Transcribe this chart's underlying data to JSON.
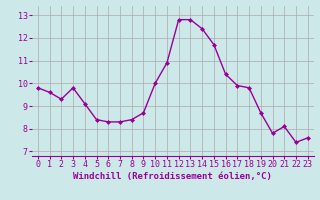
{
  "x": [
    0,
    1,
    2,
    3,
    4,
    5,
    6,
    7,
    8,
    9,
    10,
    11,
    12,
    13,
    14,
    15,
    16,
    17,
    18,
    19,
    20,
    21,
    22,
    23
  ],
  "y": [
    9.8,
    9.6,
    9.3,
    9.8,
    9.1,
    8.4,
    8.3,
    8.3,
    8.4,
    8.7,
    10.0,
    10.9,
    12.8,
    12.8,
    12.4,
    11.7,
    10.4,
    9.9,
    9.8,
    8.7,
    7.8,
    8.1,
    7.4,
    7.6
  ],
  "line_color": "#990099",
  "marker": "D",
  "marker_size": 2.0,
  "line_width": 1.0,
  "bg_color": "#cce8e8",
  "grid_color": "#aaaaaa",
  "xlabel": "Windchill (Refroidissement éolien,°C)",
  "xlabel_fontsize": 6.5,
  "ytick_min": 7,
  "ytick_max": 13,
  "ytick_step": 1,
  "xlim": [
    -0.5,
    23.5
  ],
  "ylim": [
    6.8,
    13.4
  ],
  "tick_color": "#990099",
  "tick_fontsize": 6.0
}
